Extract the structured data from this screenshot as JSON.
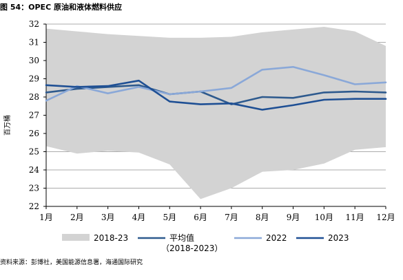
{
  "title": "图 54：OPEC 原油和液体燃料供应",
  "source": "资料来源：彭博社，美国能源信息署，海通国际研究",
  "chart_data": {
    "type": "line",
    "ylabel": "百万桶",
    "xlabel": "",
    "categories": [
      "1月",
      "2月",
      "3月",
      "4月",
      "5月",
      "6月",
      "7月",
      "8月",
      "9月",
      "10月",
      "11月",
      "12月"
    ],
    "yticks": [
      22,
      23,
      24,
      25,
      26,
      27,
      28,
      29,
      30,
      31,
      32
    ],
    "ylim": [
      22,
      32
    ],
    "grid": "horizontal",
    "range_band": {
      "name": "2018-23",
      "upper": [
        31.75,
        31.6,
        31.45,
        31.35,
        31.25,
        31.25,
        31.3,
        31.55,
        31.7,
        31.85,
        31.6,
        30.8
      ],
      "lower": [
        25.3,
        24.9,
        25.05,
        24.95,
        24.3,
        22.4,
        23.0,
        23.9,
        24.0,
        24.35,
        25.1,
        25.25
      ],
      "color": "#d3d3d3"
    },
    "series": [
      {
        "name": "平均值（2018-2023）",
        "color": "#2e5a8e",
        "values": [
          28.25,
          28.45,
          28.55,
          28.65,
          28.15,
          28.3,
          27.6,
          28.0,
          27.95,
          28.25,
          28.3,
          28.25
        ]
      },
      {
        "name": "2022",
        "color": "#8aa8d8",
        "values": [
          27.8,
          28.6,
          28.2,
          28.55,
          28.15,
          28.3,
          28.5,
          29.5,
          29.65,
          29.2,
          28.7,
          28.8
        ]
      },
      {
        "name": "2023",
        "color": "#1e4f94",
        "values": [
          28.65,
          28.55,
          28.6,
          28.9,
          27.75,
          27.6,
          27.65,
          27.3,
          27.55,
          27.85,
          27.9,
          27.9
        ]
      }
    ],
    "legend": {
      "position": "bottom",
      "items": [
        {
          "label": "2018-23",
          "kind": "band",
          "color": "#d3d3d3"
        },
        {
          "label": "平均值",
          "label2": "（2018-2023）",
          "kind": "line",
          "color": "#2e5a8e"
        },
        {
          "label": "2022",
          "kind": "line",
          "color": "#8aa8d8"
        },
        {
          "label": "2023",
          "kind": "line",
          "color": "#1e4f94"
        }
      ]
    }
  }
}
